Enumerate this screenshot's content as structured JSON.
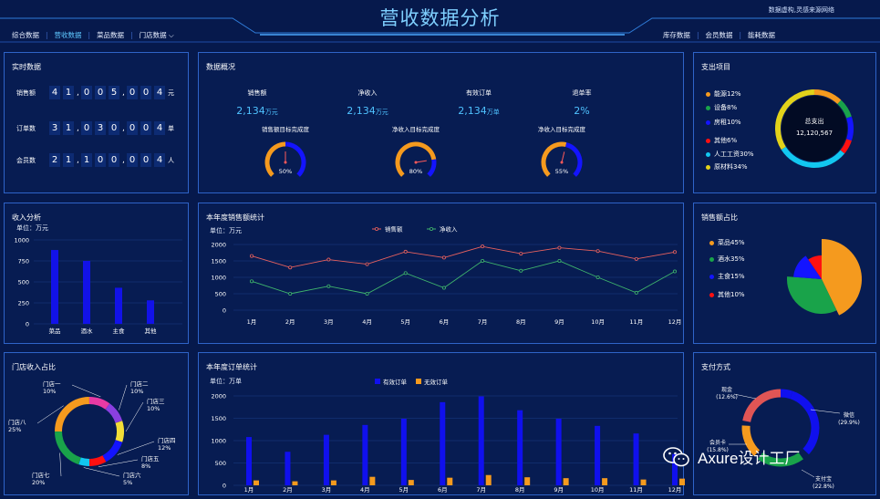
{
  "header": {
    "title": "营收数据分析",
    "slogan": "数据虚构,灵感来源网络",
    "nav_left": [
      "综合数据",
      "营收数据",
      "菜品数据",
      "门店数据"
    ],
    "nav_left_active": 1,
    "nav_right": [
      "库存数据",
      "会员数据",
      "能耗数据"
    ]
  },
  "realtime": {
    "title": "实时数据",
    "rows": [
      {
        "label": "销售额",
        "digits": [
          "4",
          "1",
          "0",
          "0",
          "5",
          "0",
          "0",
          "4"
        ],
        "unit": "元"
      },
      {
        "label": "订单数",
        "digits": [
          "3",
          "1",
          "0",
          "3",
          "0",
          "0",
          "0",
          "4"
        ],
        "unit": "单"
      },
      {
        "label": "会员数",
        "digits": [
          "2",
          "1",
          "1",
          "0",
          "0",
          "0",
          "0",
          "4"
        ],
        "unit": "人"
      }
    ]
  },
  "overview": {
    "title": "数据概况",
    "stats": [
      {
        "label": "销售额",
        "value": "2,134",
        "unit": "万元"
      },
      {
        "label": "净收入",
        "value": "2,134",
        "unit": "万元"
      },
      {
        "label": "有效订单",
        "value": "2,134",
        "unit": "万单"
      },
      {
        "label": "退单率",
        "value": "2%",
        "unit": ""
      }
    ],
    "gauges": [
      {
        "label": "销售额目标完成度",
        "value": 50,
        "text": "50%"
      },
      {
        "label": "净收入目标完成度",
        "value": 80,
        "text": "80%"
      },
      {
        "label": "净收入目标完成度",
        "value": 55,
        "text": "55%"
      }
    ]
  },
  "expense": {
    "title": "支出项目",
    "center_label": "总支出",
    "center_value": "12,120,567",
    "items": [
      {
        "label": "能源12%",
        "color": "#f59a1e",
        "share": 12
      },
      {
        "label": "设备8%",
        "color": "#19a34a",
        "share": 8
      },
      {
        "label": "房租10%",
        "color": "#1414ff",
        "share": 10
      },
      {
        "label": "其他6%",
        "color": "#ff1010",
        "share": 6
      },
      {
        "label": "人工工资30%",
        "color": "#12c7f0",
        "share": 30
      },
      {
        "label": "原材料34%",
        "color": "#e2d21a",
        "share": 34
      }
    ]
  },
  "income": {
    "title": "收入分析",
    "unit_label": "单位：万元",
    "chart_data": {
      "type": "bar",
      "categories": [
        "菜品",
        "酒水",
        "主食",
        "其他"
      ],
      "values": [
        880,
        750,
        430,
        280
      ],
      "ylim": [
        0,
        1000
      ],
      "yticks": [
        0,
        250,
        500,
        750,
        1000
      ]
    }
  },
  "sales_trend": {
    "title": "本年度销售额统计",
    "unit_label": "单位：万元",
    "chart_data": {
      "type": "line",
      "categories": [
        "1月",
        "2月",
        "3月",
        "4月",
        "5月",
        "6月",
        "7月",
        "8月",
        "9月",
        "10月",
        "11月",
        "12月"
      ],
      "series": [
        {
          "name": "销售额",
          "color": "#e8615e",
          "values": [
            1650,
            1300,
            1540,
            1400,
            1780,
            1600,
            1940,
            1720,
            1900,
            1800,
            1560,
            1770
          ]
        },
        {
          "name": "净收入",
          "color": "#3fb56d",
          "values": [
            880,
            500,
            730,
            500,
            1130,
            680,
            1500,
            1200,
            1500,
            1000,
            530,
            1180
          ]
        }
      ],
      "ylim": [
        0,
        2000
      ],
      "yticks": [
        0,
        500,
        1000,
        1500,
        2000
      ]
    }
  },
  "sales_share": {
    "title": "销售额占比",
    "items": [
      {
        "label": "菜品45%",
        "color": "#f59a1e",
        "share": 45
      },
      {
        "label": "酒水35%",
        "color": "#19a34a",
        "share": 35
      },
      {
        "label": "主食15%",
        "color": "#1414ff",
        "share": 15
      },
      {
        "label": "其他10%",
        "color": "#ff1010",
        "share": 10
      }
    ]
  },
  "store": {
    "title": "门店收入占比",
    "items": [
      {
        "name": "门店一",
        "pct": "10%",
        "color": "#e83aa4",
        "share": 10
      },
      {
        "name": "门店二",
        "pct": "10%",
        "color": "#8a3fe0",
        "share": 10
      },
      {
        "name": "门店三",
        "pct": "10%",
        "color": "#f2de37",
        "share": 10
      },
      {
        "name": "门店四",
        "pct": "12%",
        "color": "#1414ff",
        "share": 12
      },
      {
        "name": "门店五",
        "pct": "8%",
        "color": "#ff1010",
        "share": 8
      },
      {
        "name": "门店六",
        "pct": "5%",
        "color": "#12c7f0",
        "share": 5
      },
      {
        "name": "门店七",
        "pct": "20%",
        "color": "#19a34a",
        "share": 20
      },
      {
        "name": "门店八",
        "pct": "25%",
        "color": "#f59a1e",
        "share": 25
      }
    ]
  },
  "orders": {
    "title": "本年度订单统计",
    "unit_label": "单位：万单",
    "chart_data": {
      "type": "bar",
      "categories": [
        "1月",
        "2月",
        "3月",
        "4月",
        "5月",
        "6月",
        "7月",
        "8月",
        "9月",
        "10月",
        "11月",
        "12月"
      ],
      "series": [
        {
          "name": "有效订单",
          "color": "#1010ee",
          "values": [
            1080,
            750,
            1130,
            1350,
            1490,
            1860,
            1990,
            1680,
            1490,
            1330,
            1160,
            700
          ]
        },
        {
          "name": "无效订单",
          "color": "#f59a1e",
          "values": [
            110,
            90,
            110,
            190,
            120,
            170,
            230,
            180,
            160,
            160,
            130,
            150
          ]
        }
      ],
      "ylim": [
        0,
        2000
      ],
      "yticks": [
        0,
        500,
        1000,
        1500,
        2000
      ]
    }
  },
  "payment": {
    "title": "支付方式",
    "items": [
      {
        "name": "微信",
        "pct": "(29.9%)",
        "color": "#1010ee",
        "share": 29.9
      },
      {
        "name": "支付宝",
        "pct": "(22.8%)",
        "color": "#19a34a",
        "share": 22.8
      },
      {
        "name": "会员卡",
        "pct": "(15.8%)",
        "color": "#f59a1e",
        "share": 15.8
      },
      {
        "name": "现金",
        "pct": "(12.6%)",
        "color": "#e05555",
        "share": 12.6
      }
    ]
  },
  "watermark": {
    "text": "Axure设计工厂"
  }
}
